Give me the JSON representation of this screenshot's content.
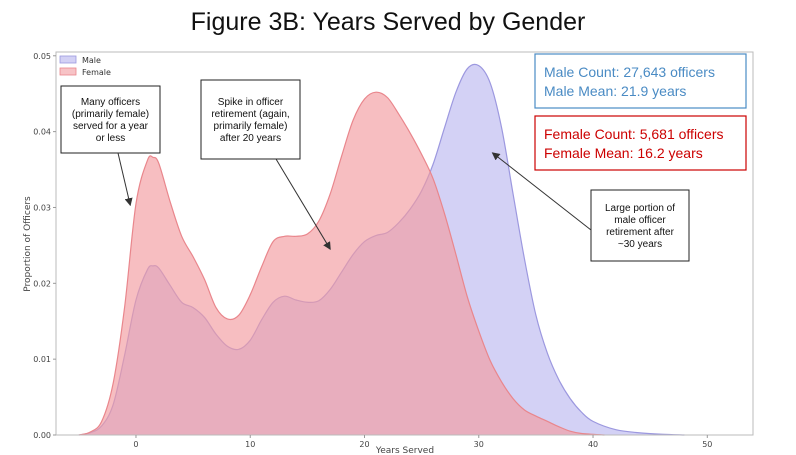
{
  "chart_data": {
    "type": "area",
    "title": "Figure 3B: Years Served by Gender",
    "xlabel": "Years Served",
    "ylabel": "Proportion of Officers",
    "xlim": [
      -7,
      54
    ],
    "ylim": [
      0,
      0.0505
    ],
    "x_ticks": [
      0,
      10,
      20,
      30,
      40,
      50
    ],
    "x_tick_labels": [
      "0",
      "10",
      "20",
      "30",
      "40",
      "50"
    ],
    "y_ticks": [
      0,
      0.01,
      0.02,
      0.03,
      0.04,
      0.05
    ],
    "y_tick_labels": [
      "0.00",
      "0.01",
      "0.02",
      "0.03",
      "0.04",
      "0.05"
    ],
    "grid": false,
    "legend_position": "top-left",
    "series": [
      {
        "name": "Male",
        "color": "#b6b3ef",
        "stroke": "#9c98df",
        "points": [
          [
            -5,
            0
          ],
          [
            -4,
            0.0003
          ],
          [
            -3,
            0.0012
          ],
          [
            -2,
            0.004
          ],
          [
            -1,
            0.0105
          ],
          [
            0,
            0.0178
          ],
          [
            1,
            0.0218
          ],
          [
            1.5,
            0.0223
          ],
          [
            2,
            0.022
          ],
          [
            3,
            0.0197
          ],
          [
            4,
            0.0175
          ],
          [
            5,
            0.0168
          ],
          [
            6,
            0.0155
          ],
          [
            7,
            0.0133
          ],
          [
            8,
            0.0117
          ],
          [
            9,
            0.0113
          ],
          [
            10,
            0.0125
          ],
          [
            11,
            0.0152
          ],
          [
            12,
            0.0175
          ],
          [
            13,
            0.0183
          ],
          [
            14,
            0.0178
          ],
          [
            15,
            0.0175
          ],
          [
            16,
            0.0177
          ],
          [
            17,
            0.0192
          ],
          [
            18,
            0.0215
          ],
          [
            19,
            0.0238
          ],
          [
            20,
            0.0255
          ],
          [
            21,
            0.0263
          ],
          [
            22,
            0.0267
          ],
          [
            23,
            0.028
          ],
          [
            24,
            0.0298
          ],
          [
            25,
            0.0322
          ],
          [
            26,
            0.0357
          ],
          [
            27,
            0.0405
          ],
          [
            28,
            0.0452
          ],
          [
            29,
            0.0483
          ],
          [
            30,
            0.0487
          ],
          [
            31,
            0.0464
          ],
          [
            32,
            0.0405
          ],
          [
            33,
            0.0318
          ],
          [
            34,
            0.0232
          ],
          [
            35,
            0.0158
          ],
          [
            36,
            0.0108
          ],
          [
            37,
            0.0073
          ],
          [
            38,
            0.0048
          ],
          [
            39,
            0.003
          ],
          [
            40,
            0.0018
          ],
          [
            42,
            0.0007
          ],
          [
            44,
            0.0003
          ],
          [
            46,
            0.0001
          ],
          [
            48,
            0
          ]
        ]
      },
      {
        "name": "Female",
        "color": "#f29ba0",
        "stroke": "#e9868c",
        "points": [
          [
            -5,
            0
          ],
          [
            -4,
            0.0004
          ],
          [
            -3,
            0.0018
          ],
          [
            -2,
            0.0068
          ],
          [
            -1,
            0.0168
          ],
          [
            0,
            0.0305
          ],
          [
            1,
            0.0362
          ],
          [
            1.5,
            0.0366
          ],
          [
            2,
            0.0358
          ],
          [
            3,
            0.0307
          ],
          [
            4,
            0.0262
          ],
          [
            5,
            0.0235
          ],
          [
            6,
            0.0205
          ],
          [
            7,
            0.0168
          ],
          [
            8,
            0.0153
          ],
          [
            9,
            0.0158
          ],
          [
            10,
            0.0185
          ],
          [
            11,
            0.0222
          ],
          [
            12,
            0.0255
          ],
          [
            13,
            0.0262
          ],
          [
            14,
            0.0262
          ],
          [
            15,
            0.0265
          ],
          [
            16,
            0.0282
          ],
          [
            17,
            0.0318
          ],
          [
            18,
            0.0368
          ],
          [
            19,
            0.0415
          ],
          [
            20,
            0.0443
          ],
          [
            21,
            0.0452
          ],
          [
            22,
            0.0445
          ],
          [
            23,
            0.0423
          ],
          [
            24,
            0.0398
          ],
          [
            25,
            0.037
          ],
          [
            26,
            0.0338
          ],
          [
            27,
            0.0292
          ],
          [
            28,
            0.0238
          ],
          [
            29,
            0.0182
          ],
          [
            30,
            0.0137
          ],
          [
            31,
            0.0098
          ],
          [
            32,
            0.007
          ],
          [
            33,
            0.0048
          ],
          [
            34,
            0.0033
          ],
          [
            35,
            0.0025
          ],
          [
            36,
            0.0018
          ],
          [
            37,
            0.0011
          ],
          [
            38,
            0.0005
          ],
          [
            39,
            0.0002
          ],
          [
            41,
            0
          ]
        ]
      }
    ],
    "annotations": [
      {
        "id": "female-short",
        "lines": [
          "Many officers",
          "(primarily female)",
          "served for a year",
          "or less"
        ],
        "arrow_to": [
          -0.5,
          0.0303
        ]
      },
      {
        "id": "spike-20",
        "lines": [
          "Spike in officer",
          "retirement (again,",
          "primarily female)",
          "after 20 years"
        ],
        "arrow_to": [
          17,
          0.0245
        ]
      },
      {
        "id": "male-30",
        "lines": [
          "Large portion of",
          "male officer",
          "retirement after",
          "~30 years"
        ],
        "arrow_to": [
          31.2,
          0.0372
        ]
      }
    ],
    "stat_boxes": [
      {
        "id": "male",
        "color": "#4a8bc4",
        "lines": [
          "Male Count: 27,643 officers",
          "Male Mean: 21.9 years"
        ]
      },
      {
        "id": "female",
        "color": "#cc0000",
        "lines": [
          "Female Count: 5,681 officers",
          "Female Mean: 16.2 years"
        ]
      }
    ]
  }
}
